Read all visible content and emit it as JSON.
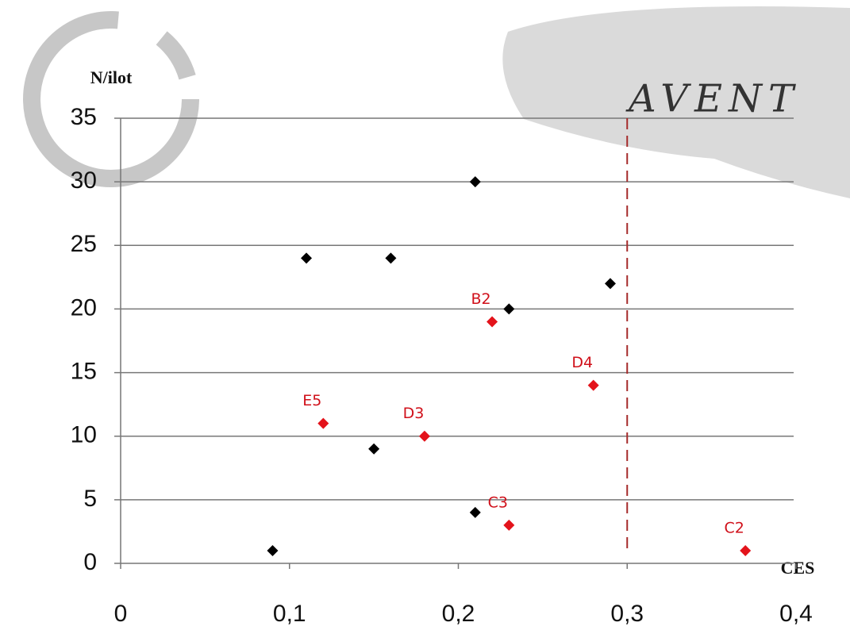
{
  "chart_data": {
    "type": "scatter",
    "watermark": "AVENT",
    "x_label": "CES",
    "y_label": "N/ilot",
    "xlim": [
      0,
      0.4
    ],
    "xticks": [
      0,
      {
        "value": 0.1,
        "label": "0,1"
      },
      {
        "value": 0.2,
        "label": "0,2"
      },
      {
        "value": 0.3,
        "label": "0,3"
      },
      {
        "value": 0.4,
        "label": "0,4"
      }
    ],
    "ylim": [
      0,
      35
    ],
    "yticks": [
      0,
      5,
      10,
      15,
      20,
      25,
      30,
      35
    ],
    "grid": true,
    "marker": "diamond",
    "vline": {
      "x": 0.3,
      "color": "#a52a2a",
      "dashed": true
    },
    "series": [
      {
        "color": "#000000",
        "x": [
          0.09,
          0.11,
          0.16,
          0.21,
          0.23,
          0.29,
          0.15,
          0.21
        ],
        "values": [
          1,
          24,
          24,
          30,
          20,
          22,
          9,
          4
        ]
      },
      {
        "color": "#e3131b",
        "x": [
          0.22,
          0.28,
          0.12,
          0.18,
          0.23,
          0.37
        ],
        "values": [
          19,
          14,
          11,
          10,
          3,
          1
        ],
        "labels": [
          "B2",
          "D4",
          "E5",
          "D3",
          "C3",
          "C2"
        ]
      }
    ]
  }
}
